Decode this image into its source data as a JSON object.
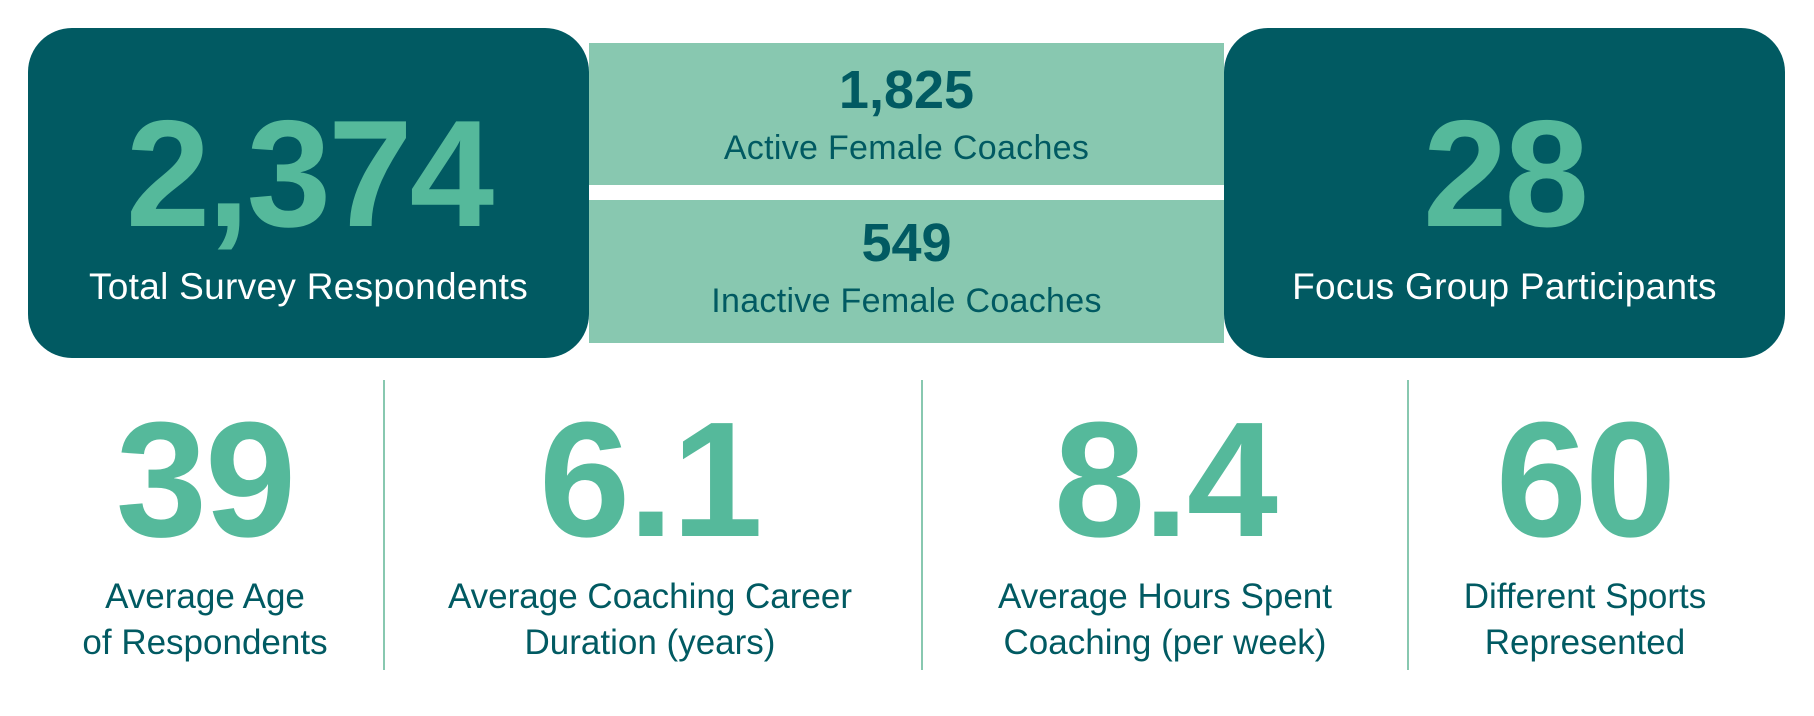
{
  "total_respondents": {
    "value": "2,374",
    "label": "Total Survey Respondents"
  },
  "active_coaches": {
    "value": "1,825",
    "label": "Active Female Coaches"
  },
  "inactive_coaches": {
    "value": "549",
    "label": "Inactive Female Coaches"
  },
  "focus_group": {
    "value": "28",
    "label": "Focus Group Participants"
  },
  "stats": [
    {
      "value": "39",
      "label": "Average Age\nof Respondents"
    },
    {
      "value": "6.1",
      "label": "Average Coaching Career\nDuration (years)"
    },
    {
      "value": "8.4",
      "label": "Average Hours Spent\nCoaching (per week)"
    },
    {
      "value": "60",
      "label": "Different Sports\nRepresented"
    }
  ],
  "colors": {
    "dark_teal": "#015a62",
    "accent_green": "#55b99b",
    "light_green": "#88c8b0",
    "white": "#ffffff"
  }
}
